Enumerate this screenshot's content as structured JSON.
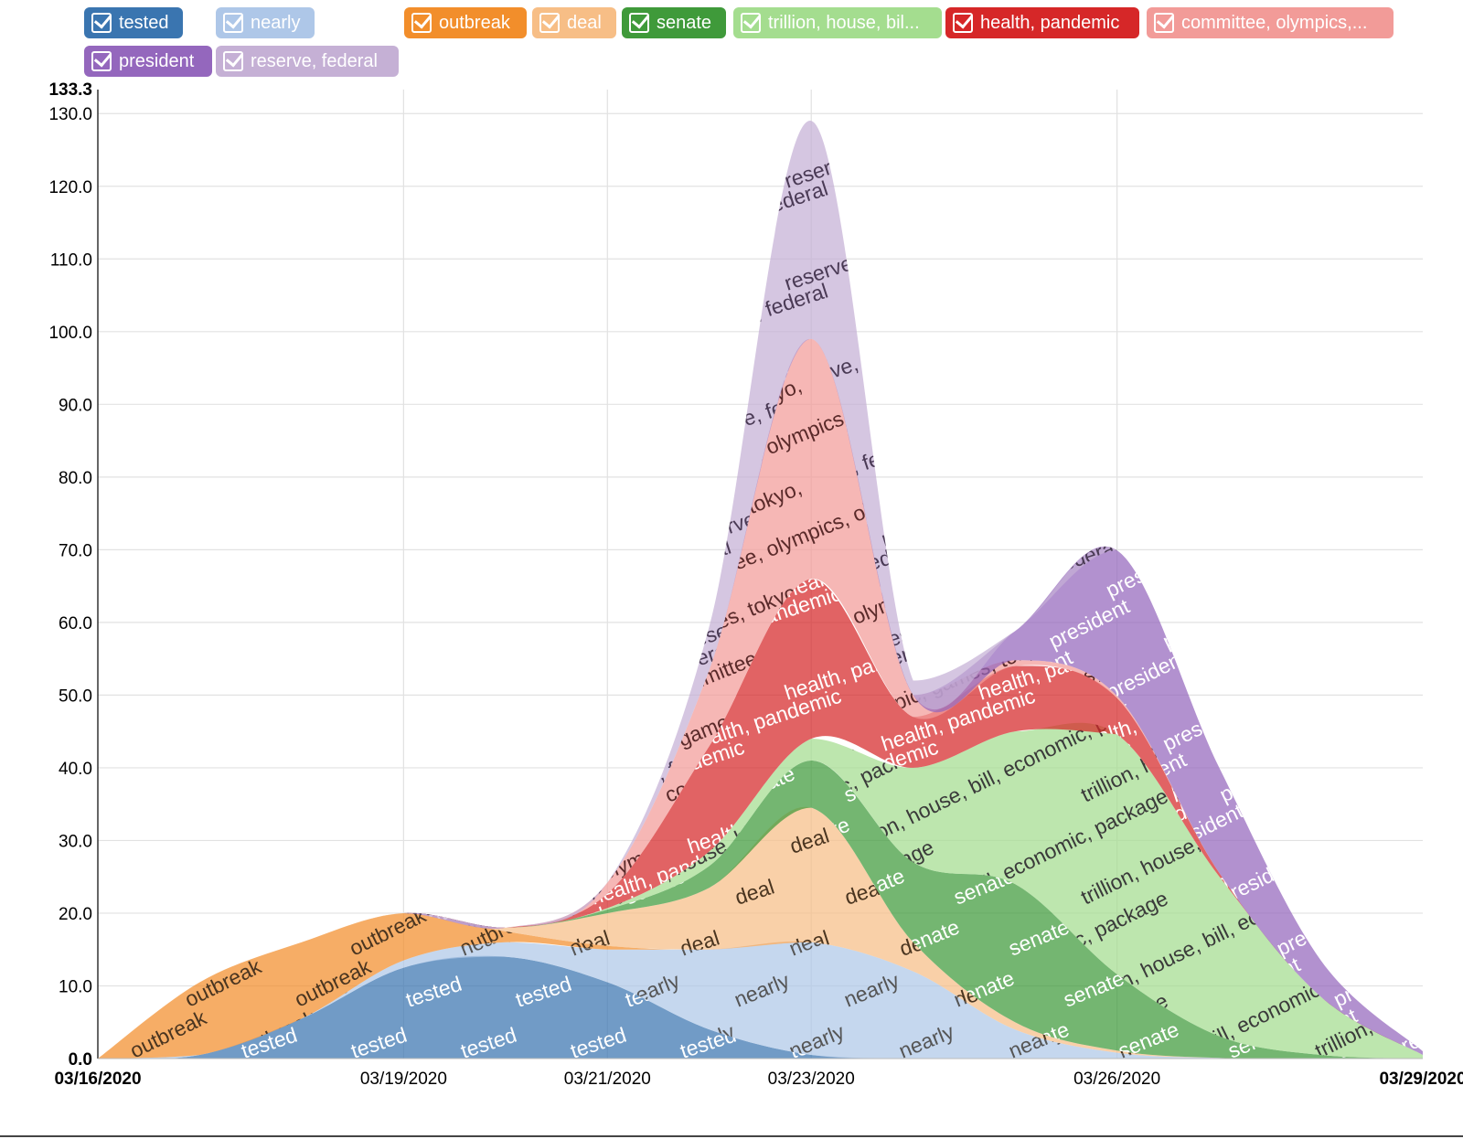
{
  "legend": [
    {
      "id": "tested",
      "label": "tested",
      "color": "#3a75b0"
    },
    {
      "id": "nearly",
      "label": "nearly",
      "color": "#aec7e8"
    },
    {
      "id": "outbreak",
      "label": "outbreak",
      "color": "#f28e2b"
    },
    {
      "id": "deal",
      "label": "deal",
      "color": "#f7be86"
    },
    {
      "id": "senate",
      "label": "senate",
      "color": "#3f9a3a"
    },
    {
      "id": "trillion",
      "label": "trillion, house, bil...",
      "color": "#a4dd8f"
    },
    {
      "id": "health",
      "label": "health, pandemic",
      "color": "#d62728"
    },
    {
      "id": "committee",
      "label": "committee, olympics,...",
      "color": "#f29b98"
    },
    {
      "id": "president",
      "label": "president",
      "color": "#9467bd"
    },
    {
      "id": "reserve",
      "label": "reserve, federal",
      "color": "#c5b0d5"
    }
  ],
  "chart_data": {
    "type": "area",
    "subtype": "streamgraph",
    "x_start": "03/16/2020",
    "x_end": "03/29/2020",
    "x_tick_labels": [
      "03/16/2020",
      "03/19/2020",
      "03/21/2020",
      "03/23/2020",
      "03/26/2020",
      "03/29/2020"
    ],
    "ylim": [
      0,
      133.3
    ],
    "y_max_label": "133.3",
    "y_tick_labels": [
      "0.0",
      "10.0",
      "20.0",
      "30.0",
      "40.0",
      "50.0",
      "60.0",
      "70.0",
      "80.0",
      "90.0",
      "100.0",
      "110.0",
      "120.0",
      "130.0"
    ],
    "grid": true,
    "legend_position": "top",
    "x": [
      "03/16/2020",
      "03/17/2020",
      "03/18/2020",
      "03/19/2020",
      "03/20/2020",
      "03/21/2020",
      "03/22/2020",
      "03/23/2020",
      "03/24/2020",
      "03/25/2020",
      "03/26/2020",
      "03/27/2020",
      "03/28/2020",
      "03/29/2020"
    ],
    "series": [
      {
        "name": "tested",
        "text": "tested",
        "color": "#3a75b0",
        "text_color": "#ffffff",
        "values": [
          0,
          0.5,
          5.5,
          12.5,
          14,
          10.5,
          4,
          0.5,
          0,
          0,
          0,
          0,
          0,
          0
        ]
      },
      {
        "name": "nearly",
        "text": "nearly",
        "color": "#aec7e8",
        "text_color": "#555555",
        "values": [
          0,
          0,
          0,
          1,
          2,
          4.5,
          11,
          15.5,
          12,
          4,
          0.8,
          0.1,
          0,
          0
        ]
      },
      {
        "name": "outbreak",
        "text": "outbreak",
        "color": "#f28e2b",
        "text_color": "#4a3520",
        "values": [
          0,
          10,
          10.5,
          6.5,
          1.5,
          0.5,
          0,
          0,
          0,
          0,
          0,
          0,
          0,
          0
        ]
      },
      {
        "name": "deal",
        "text": "deal",
        "color": "#f7be86",
        "text_color": "#4a3520",
        "values": [
          0,
          0,
          0,
          0,
          0.5,
          4.5,
          8.5,
          18.5,
          4,
          1,
          0.3,
          0,
          0,
          0
        ]
      },
      {
        "name": "senate",
        "text": "senate",
        "color": "#3f9a3a",
        "text_color": "#ffffff",
        "values": [
          0,
          0,
          0,
          0,
          0,
          0.5,
          3,
          6.5,
          11,
          19,
          10.5,
          3,
          0.5,
          0
        ]
      },
      {
        "name": "trillion, house, bil...",
        "text": "trillion, house, bill, economic, package",
        "color": "#a4dd8f",
        "text_color": "#3a3a3a",
        "values": [
          0,
          0,
          0,
          0,
          0,
          0.2,
          2,
          3,
          13,
          21,
          33,
          22,
          8,
          0.5
        ]
      },
      {
        "name": "health, pandemic",
        "text": "health, pandemic",
        "color": "#d62728",
        "text_color": "#ffffff",
        "values": [
          0,
          0,
          0,
          0,
          0,
          2,
          14.5,
          22,
          7,
          9,
          5,
          0.5,
          0,
          0
        ]
      },
      {
        "name": "committee, olympics,...",
        "text": "committee, olympics, olympic, games, tokyo,",
        "color": "#f29b98",
        "text_color": "#5a2a2a",
        "values": [
          0,
          0,
          0,
          0,
          0,
          1.5,
          10.5,
          33,
          3,
          0.8,
          0.3,
          0,
          0,
          0
        ]
      },
      {
        "name": "president",
        "text": "president",
        "color": "#9467bd",
        "text_color": "#ffffff",
        "values": [
          0,
          0,
          0,
          0,
          0,
          0,
          0,
          0,
          0,
          4,
          20,
          14.5,
          5,
          0.5
        ]
      },
      {
        "name": "reserve, federal",
        "text": "reserve, federal",
        "color": "#c5b0d5",
        "text_color": "#4a3a55",
        "values": [
          0,
          0,
          0,
          0,
          0,
          0,
          6,
          30,
          2,
          0,
          0,
          0,
          0,
          0
        ]
      }
    ]
  }
}
